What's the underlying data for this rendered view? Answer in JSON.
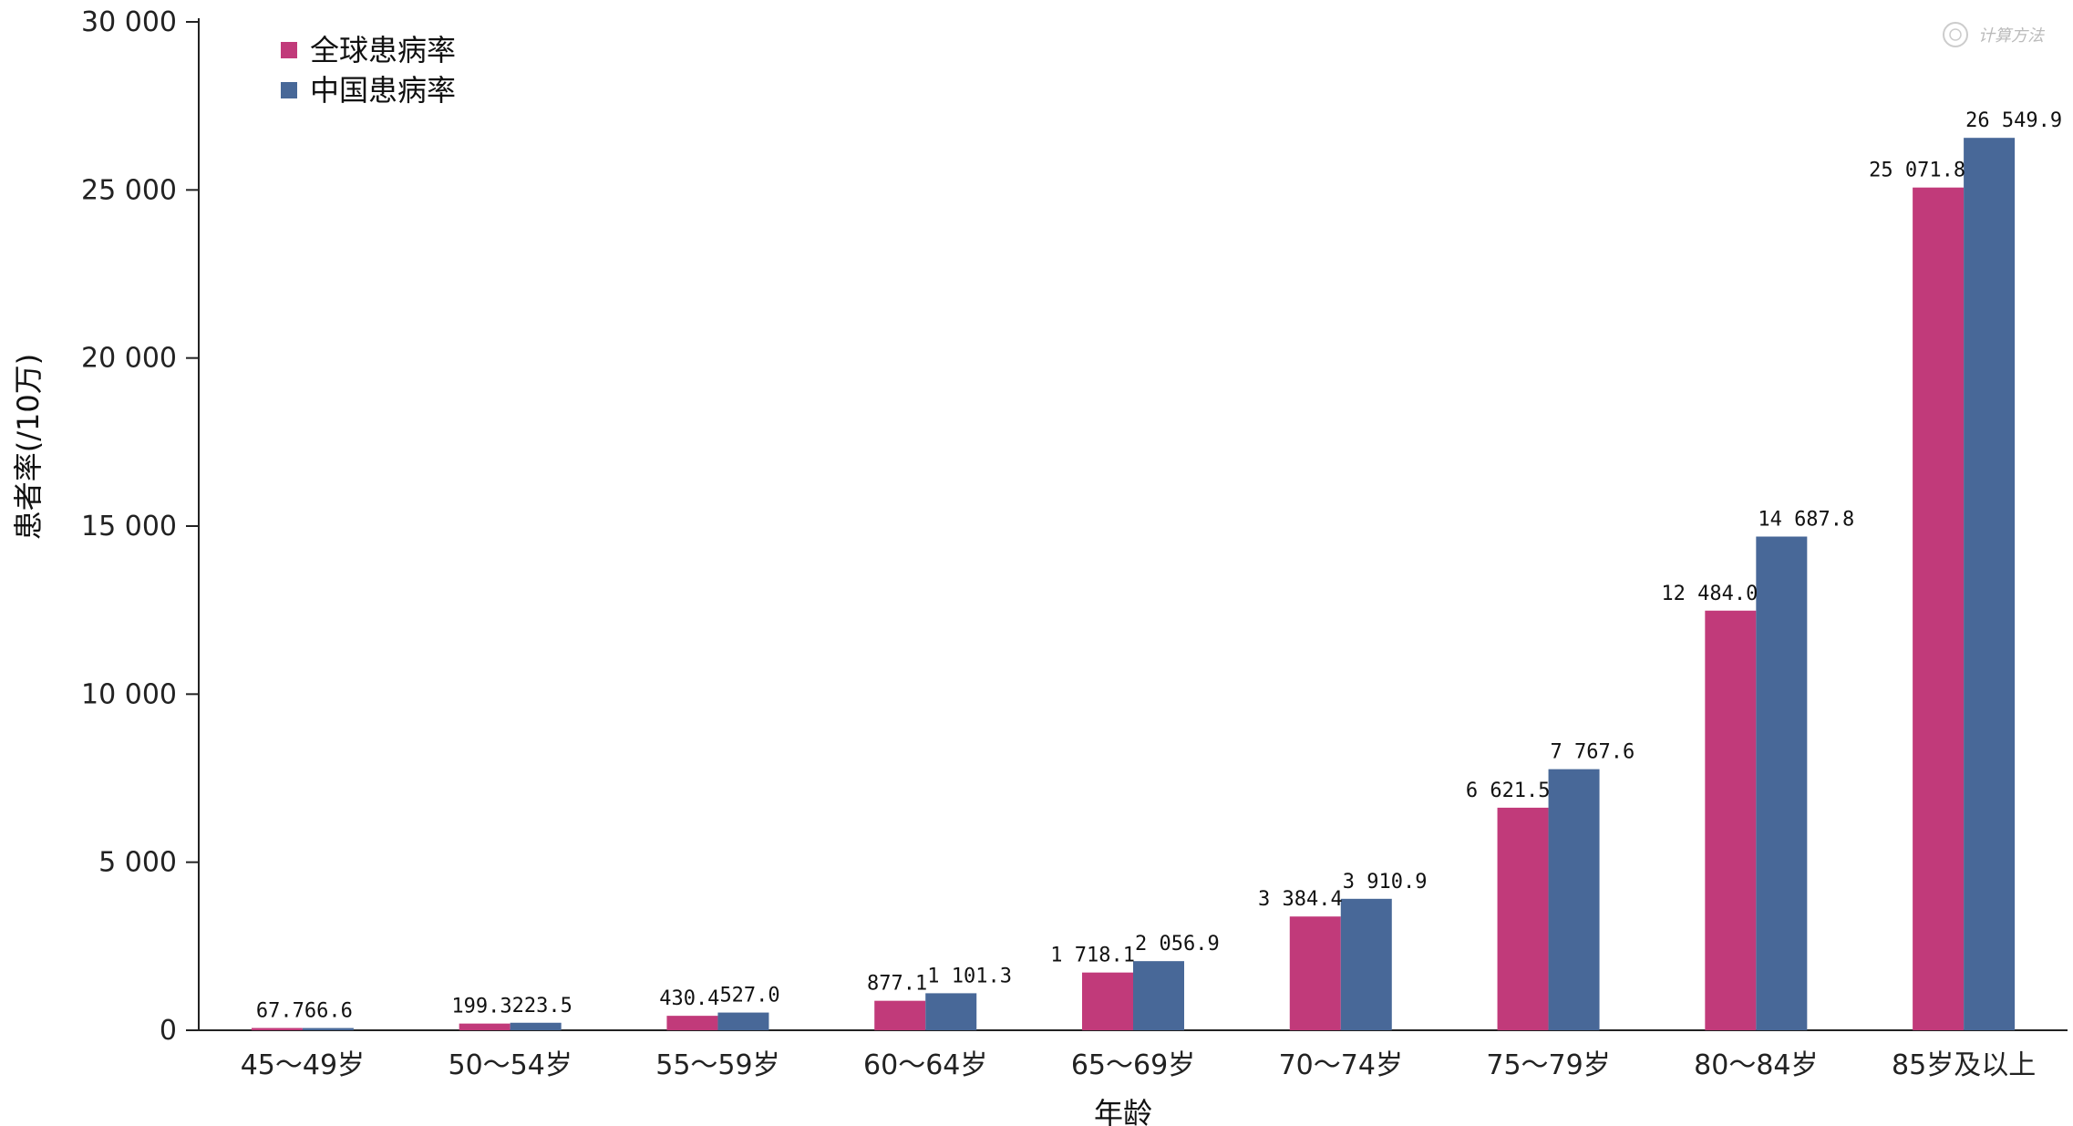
{
  "chart_data": {
    "type": "bar",
    "title": "",
    "xlabel": "年龄",
    "ylabel": "患者率(/10万)",
    "ylim": [
      0,
      30000
    ],
    "yticks": [
      0,
      5000,
      10000,
      15000,
      20000,
      25000,
      30000
    ],
    "ytick_labels": [
      "0",
      "5 000",
      "10 000",
      "15 000",
      "20 000",
      "25 000",
      "30 000"
    ],
    "categories": [
      "45～49岁",
      "50～54岁",
      "55～59岁",
      "60～64岁",
      "65～69岁",
      "70～74岁",
      "75～79岁",
      "80～84岁",
      "85岁及以上"
    ],
    "series": [
      {
        "name": "全球患病率",
        "color": "#c13a7a",
        "values": [
          67.7,
          199.3,
          430.4,
          877.1,
          1718.1,
          3384.4,
          6621.5,
          12484.0,
          25071.8
        ],
        "labels": [
          "67.7",
          "199.3",
          "430.4",
          "877.1",
          "1 718.1",
          "3 384.4",
          "6 621.5",
          "12 484.0",
          "25 071.8"
        ]
      },
      {
        "name": "中国患病率",
        "color": "#486898",
        "values": [
          66.6,
          223.5,
          527.0,
          1101.3,
          2056.9,
          3910.9,
          7767.6,
          14687.8,
          26549.9
        ],
        "labels": [
          "66.6",
          "223.5",
          "527.0",
          "1 101.3",
          "2 056.9",
          "3 910.9",
          "7 767.6",
          "14 687.8",
          "26 549.9"
        ]
      }
    ],
    "grid": false,
    "legend_position": "top-left"
  },
  "watermark": "计算方法"
}
